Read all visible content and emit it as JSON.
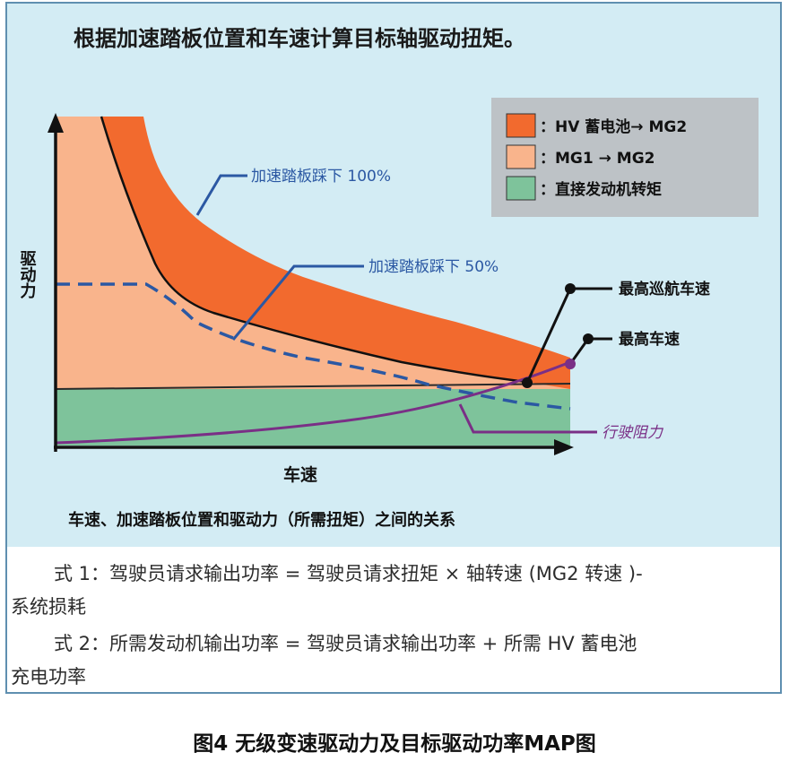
{
  "title": "根据加速踏板位置和车速计算目标轴驱动扭矩。",
  "legend": [
    {
      "label": "：HV 蓄电池→ MG2",
      "color": "#f26a2e"
    },
    {
      "label": "：MG1 → MG2",
      "color": "#f9b48c"
    },
    {
      "label": "：直接发动机转矩",
      "color": "#7ec39b"
    }
  ],
  "axes": {
    "ylabel": "驱动力",
    "xlabel": "车速"
  },
  "annotations": {
    "pedal_100": "加速踏板踩下 100%",
    "pedal_50": "加速踏板踩下 50%",
    "max_cruise": "最高巡航车速",
    "max_speed": "最高车速",
    "resistance": "行驶阻力"
  },
  "caption": "车速、加速踏板位置和驱动力（所需扭矩）之间的关系",
  "formulas": [
    {
      "line1": "式 1：驾驶员请求输出功率 = 驾驶员请求扭矩 × 轴转速 (MG2 转速 )-",
      "line2": "系统损耗"
    },
    {
      "line1": "式 2：所需发动机输出功率 = 驾驶员请求输出功率 + 所需 HV 蓄电池",
      "line2": "充电功率"
    }
  ],
  "figure_caption": "图4 无级变速驱动力及目标驱动功率MAP图",
  "colors": {
    "panel_bg": "#d3ecf4",
    "hv_battery": "#f26a2e",
    "mg1": "#f9b48c",
    "engine": "#7ec39b",
    "pedal_line": "#2b58a3",
    "resistance_line": "#7a2f86",
    "annotation_text": "#2b58a3"
  }
}
